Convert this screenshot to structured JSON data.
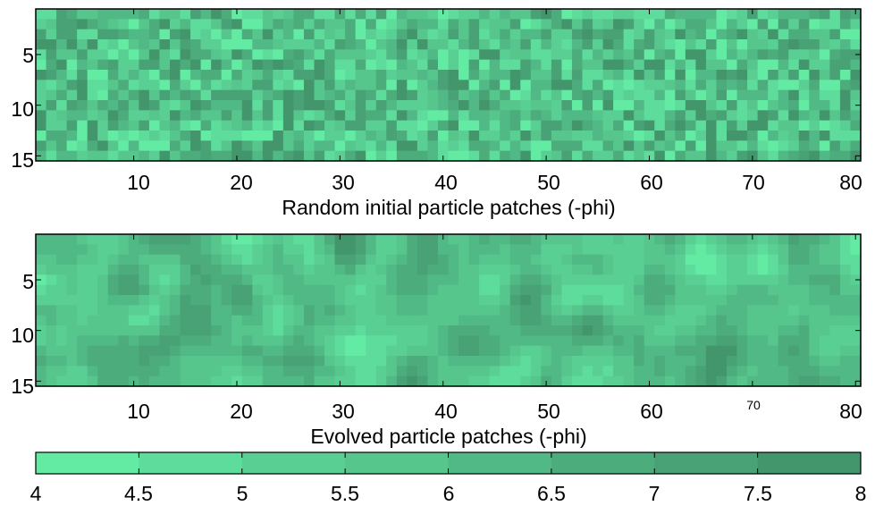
{
  "chart_data": [
    {
      "type": "heatmap",
      "xlabel": "Random initial particle patches (-phi)",
      "x_range": [
        1,
        80
      ],
      "y_range": [
        1,
        15
      ],
      "y_direction": "top-to-bottom",
      "x_ticks": [
        "10",
        "20",
        "30",
        "40",
        "50",
        "60",
        "70",
        "80"
      ],
      "y_ticks": [
        "5",
        "10",
        "15"
      ],
      "value_range": [
        4,
        8
      ],
      "grid": false,
      "seed": 1337,
      "smoothing": 0
    },
    {
      "type": "heatmap",
      "xlabel": "Evolved particle patches (-phi)",
      "x_range": [
        1,
        80
      ],
      "y_range": [
        1,
        15
      ],
      "y_direction": "top-to-bottom",
      "x_ticks": [
        "10",
        "20",
        "30",
        "40",
        "50",
        "60",
        "70",
        "80"
      ],
      "y_ticks": [
        "5",
        "10",
        "15"
      ],
      "value_range": [
        4,
        8
      ],
      "grid": false,
      "seed": 4242,
      "smoothing": 2
    }
  ],
  "colorbar": {
    "orientation": "horizontal",
    "min": 4,
    "max": 8,
    "ticks": [
      "4",
      "4.5",
      "5",
      "5.5",
      "6",
      "6.5",
      "7",
      "7.5",
      "8"
    ],
    "colors": [
      "#63eba4",
      "#5edc9c",
      "#5acf93",
      "#56c68d",
      "#51b985",
      "#4cac7b",
      "#48a276",
      "#43966c"
    ]
  }
}
